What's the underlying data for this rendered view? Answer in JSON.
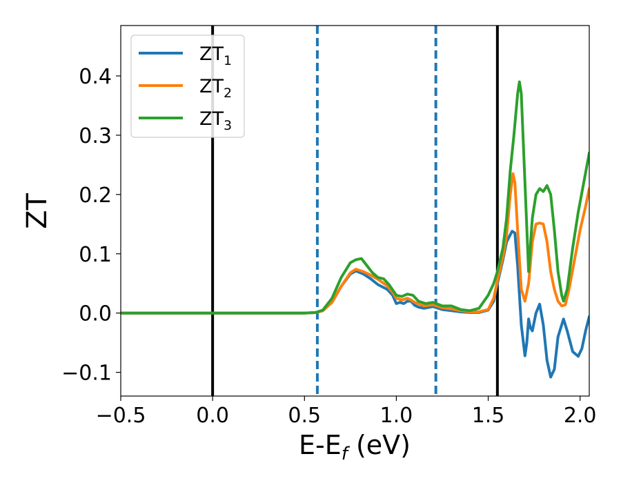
{
  "chart_data": {
    "type": "line",
    "xlabel": {
      "main": "E-E",
      "sub": "f",
      "unit": " (eV)"
    },
    "ylabel": "ZT",
    "xlim": [
      -0.5,
      2.05
    ],
    "ylim": [
      -0.14,
      0.485
    ],
    "grid": false,
    "legend_position": "top-left",
    "x_ticks": [
      {
        "value": -0.5,
        "label": "−0.5"
      },
      {
        "value": 0.0,
        "label": "0.0"
      },
      {
        "value": 0.5,
        "label": "0.5"
      },
      {
        "value": 1.0,
        "label": "1.0"
      },
      {
        "value": 1.5,
        "label": "1.5"
      },
      {
        "value": 2.0,
        "label": "2.0"
      }
    ],
    "y_ticks": [
      {
        "value": -0.1,
        "label": "−0.1"
      },
      {
        "value": 0.0,
        "label": "0.0"
      },
      {
        "value": 0.1,
        "label": "0.1"
      },
      {
        "value": 0.2,
        "label": "0.2"
      },
      {
        "value": 0.3,
        "label": "0.3"
      },
      {
        "value": 0.4,
        "label": "0.4"
      }
    ],
    "vertical_lines": [
      {
        "x": 0.0,
        "color": "#000000",
        "style": "solid"
      },
      {
        "x": 1.55,
        "color": "#000000",
        "style": "solid"
      },
      {
        "x": 0.57,
        "color": "#1f77b4",
        "style": "dashed"
      },
      {
        "x": 1.215,
        "color": "#1f77b4",
        "style": "dashed"
      }
    ],
    "series": [
      {
        "name": "ZT",
        "sub": "1",
        "color": "#1f77b4",
        "points": [
          [
            -0.5,
            0
          ],
          [
            0.5,
            0
          ],
          [
            0.56,
            0.0008
          ],
          [
            0.6,
            0.004
          ],
          [
            0.65,
            0.018
          ],
          [
            0.7,
            0.045
          ],
          [
            0.75,
            0.066
          ],
          [
            0.78,
            0.071
          ],
          [
            0.82,
            0.066
          ],
          [
            0.86,
            0.058
          ],
          [
            0.9,
            0.048
          ],
          [
            0.95,
            0.04
          ],
          [
            0.98,
            0.03
          ],
          [
            1.0,
            0.016
          ],
          [
            1.02,
            0.018
          ],
          [
            1.04,
            0.016
          ],
          [
            1.06,
            0.02
          ],
          [
            1.08,
            0.02
          ],
          [
            1.1,
            0.013
          ],
          [
            1.12,
            0.01
          ],
          [
            1.15,
            0.008
          ],
          [
            1.2,
            0.011
          ],
          [
            1.25,
            0.006
          ],
          [
            1.3,
            0.004
          ],
          [
            1.35,
            0.002
          ],
          [
            1.4,
            0.001
          ],
          [
            1.45,
            0.001
          ],
          [
            1.5,
            0.005
          ],
          [
            1.53,
            0.02
          ],
          [
            1.55,
            0.05
          ],
          [
            1.58,
            0.09
          ],
          [
            1.6,
            0.12
          ],
          [
            1.63,
            0.138
          ],
          [
            1.645,
            0.135
          ],
          [
            1.66,
            0.08
          ],
          [
            1.68,
            -0.02
          ],
          [
            1.7,
            -0.072
          ],
          [
            1.71,
            -0.05
          ],
          [
            1.72,
            -0.01
          ],
          [
            1.73,
            -0.025
          ],
          [
            1.74,
            -0.03
          ],
          [
            1.76,
            0
          ],
          [
            1.78,
            0.015
          ],
          [
            1.8,
            -0.02
          ],
          [
            1.82,
            -0.08
          ],
          [
            1.84,
            -0.108
          ],
          [
            1.86,
            -0.095
          ],
          [
            1.88,
            -0.04
          ],
          [
            1.91,
            -0.01
          ],
          [
            1.93,
            -0.03
          ],
          [
            1.96,
            -0.065
          ],
          [
            1.99,
            -0.073
          ],
          [
            2.01,
            -0.06
          ],
          [
            2.03,
            -0.03
          ],
          [
            2.05,
            -0.006
          ]
        ]
      },
      {
        "name": "ZT",
        "sub": "2",
        "color": "#ff7f0e",
        "points": [
          [
            -0.5,
            0
          ],
          [
            0.5,
            0
          ],
          [
            0.56,
            0.0008
          ],
          [
            0.6,
            0.004
          ],
          [
            0.65,
            0.018
          ],
          [
            0.7,
            0.045
          ],
          [
            0.75,
            0.068
          ],
          [
            0.78,
            0.074
          ],
          [
            0.82,
            0.07
          ],
          [
            0.86,
            0.064
          ],
          [
            0.9,
            0.057
          ],
          [
            0.95,
            0.046
          ],
          [
            0.98,
            0.035
          ],
          [
            1.0,
            0.025
          ],
          [
            1.03,
            0.022
          ],
          [
            1.06,
            0.025
          ],
          [
            1.08,
            0.022
          ],
          [
            1.1,
            0.018
          ],
          [
            1.15,
            0.012
          ],
          [
            1.2,
            0.014
          ],
          [
            1.25,
            0.009
          ],
          [
            1.3,
            0.007
          ],
          [
            1.35,
            0.004
          ],
          [
            1.4,
            0.002
          ],
          [
            1.45,
            0.002
          ],
          [
            1.5,
            0.006
          ],
          [
            1.53,
            0.025
          ],
          [
            1.55,
            0.055
          ],
          [
            1.58,
            0.095
          ],
          [
            1.6,
            0.13
          ],
          [
            1.62,
            0.2
          ],
          [
            1.635,
            0.235
          ],
          [
            1.645,
            0.22
          ],
          [
            1.66,
            0.14
          ],
          [
            1.68,
            0.04
          ],
          [
            1.7,
            0.02
          ],
          [
            1.72,
            0.05
          ],
          [
            1.74,
            0.12
          ],
          [
            1.76,
            0.15
          ],
          [
            1.78,
            0.152
          ],
          [
            1.8,
            0.15
          ],
          [
            1.82,
            0.12
          ],
          [
            1.84,
            0.07
          ],
          [
            1.86,
            0.04
          ],
          [
            1.88,
            0.02
          ],
          [
            1.9,
            0.012
          ],
          [
            1.92,
            0.014
          ],
          [
            1.94,
            0.04
          ],
          [
            1.97,
            0.09
          ],
          [
            2.0,
            0.14
          ],
          [
            2.03,
            0.18
          ],
          [
            2.05,
            0.21
          ]
        ]
      },
      {
        "name": "ZT",
        "sub": "3",
        "color": "#2ca02c",
        "points": [
          [
            -0.5,
            0
          ],
          [
            0.5,
            0
          ],
          [
            0.56,
            0.001
          ],
          [
            0.6,
            0.005
          ],
          [
            0.65,
            0.025
          ],
          [
            0.7,
            0.06
          ],
          [
            0.75,
            0.085
          ],
          [
            0.78,
            0.09
          ],
          [
            0.81,
            0.092
          ],
          [
            0.84,
            0.08
          ],
          [
            0.87,
            0.068
          ],
          [
            0.9,
            0.06
          ],
          [
            0.93,
            0.058
          ],
          [
            0.96,
            0.048
          ],
          [
            1.0,
            0.03
          ],
          [
            1.03,
            0.028
          ],
          [
            1.06,
            0.032
          ],
          [
            1.09,
            0.03
          ],
          [
            1.12,
            0.02
          ],
          [
            1.16,
            0.016
          ],
          [
            1.2,
            0.018
          ],
          [
            1.25,
            0.012
          ],
          [
            1.3,
            0.012
          ],
          [
            1.35,
            0.006
          ],
          [
            1.4,
            0.004
          ],
          [
            1.45,
            0.008
          ],
          [
            1.5,
            0.03
          ],
          [
            1.53,
            0.05
          ],
          [
            1.55,
            0.07
          ],
          [
            1.58,
            0.11
          ],
          [
            1.6,
            0.16
          ],
          [
            1.62,
            0.24
          ],
          [
            1.64,
            0.3
          ],
          [
            1.66,
            0.37
          ],
          [
            1.67,
            0.39
          ],
          [
            1.68,
            0.37
          ],
          [
            1.7,
            0.22
          ],
          [
            1.72,
            0.07
          ],
          [
            1.74,
            0.16
          ],
          [
            1.76,
            0.2
          ],
          [
            1.78,
            0.21
          ],
          [
            1.8,
            0.205
          ],
          [
            1.82,
            0.215
          ],
          [
            1.84,
            0.2
          ],
          [
            1.86,
            0.14
          ],
          [
            1.88,
            0.07
          ],
          [
            1.9,
            0.03
          ],
          [
            1.91,
            0.02
          ],
          [
            1.93,
            0.04
          ],
          [
            1.96,
            0.11
          ],
          [
            1.99,
            0.17
          ],
          [
            2.02,
            0.22
          ],
          [
            2.05,
            0.27
          ]
        ]
      }
    ]
  }
}
